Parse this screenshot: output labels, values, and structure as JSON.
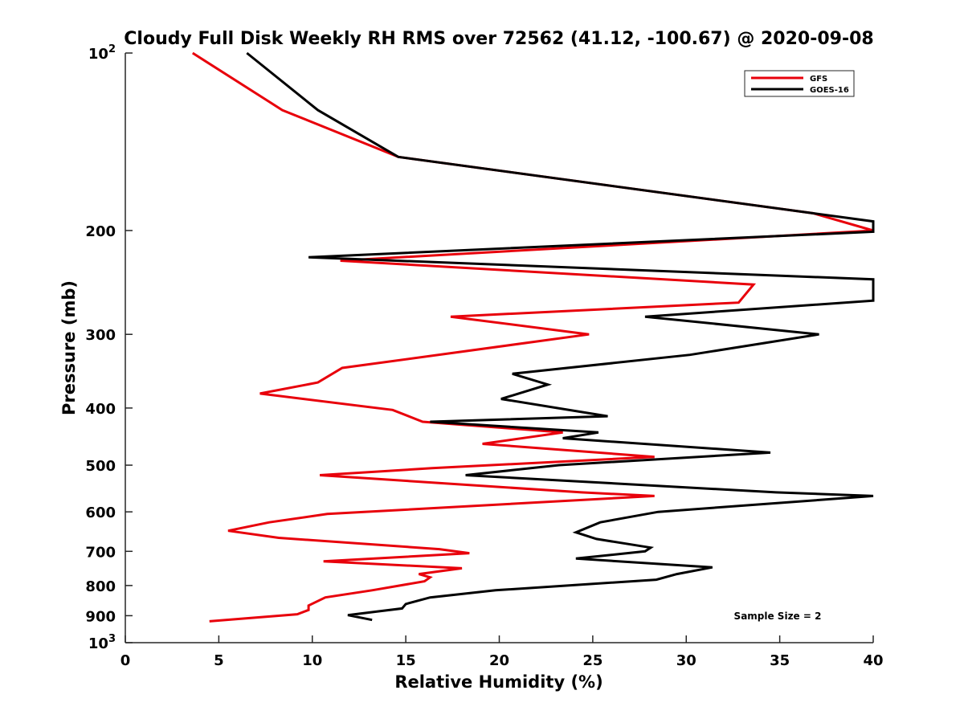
{
  "chart_data": {
    "type": "line",
    "title": "Cloudy Full Disk Weekly RH RMS over 72562 (41.12, -100.67) @ 2020-09-08",
    "xlabel": "Relative Humidity (%)",
    "ylabel": "Pressure (mb)",
    "xlim": [
      0,
      40
    ],
    "ylim": [
      100,
      1000
    ],
    "y_scale": "log",
    "y_reversed": true,
    "x_ticks": [
      "0",
      "5",
      "10",
      "15",
      "20",
      "25",
      "30",
      "35",
      "40"
    ],
    "y_ticks": [
      {
        "value": 100,
        "label": "10",
        "sup": "2"
      },
      {
        "value": 200,
        "label": "200",
        "sup": ""
      },
      {
        "value": 300,
        "label": "300",
        "sup": ""
      },
      {
        "value": 400,
        "label": "400",
        "sup": ""
      },
      {
        "value": 500,
        "label": "500",
        "sup": ""
      },
      {
        "value": 600,
        "label": "600",
        "sup": ""
      },
      {
        "value": 700,
        "label": "700",
        "sup": ""
      },
      {
        "value": 800,
        "label": "800",
        "sup": ""
      },
      {
        "value": 900,
        "label": "900",
        "sup": ""
      },
      {
        "value": 1000,
        "label": "10",
        "sup": "3"
      }
    ],
    "grid": false,
    "legend_position": "top-right",
    "annotation": "Sample Size = 2",
    "series": [
      {
        "name": "GFS",
        "color": "#e8000b",
        "points": [
          [
            3.6,
            100
          ],
          [
            8.4,
            125
          ],
          [
            14.6,
            150
          ],
          [
            36.8,
            187
          ],
          [
            40,
            200
          ],
          [
            11.5,
            225
          ],
          [
            33.6,
            247
          ],
          [
            32.8,
            265
          ],
          [
            17.4,
            280
          ],
          [
            24.8,
            300
          ],
          [
            11.6,
            342
          ],
          [
            10.3,
            362
          ],
          [
            7.2,
            378
          ],
          [
            14.3,
            403
          ],
          [
            15.9,
            422
          ],
          [
            23.4,
            440
          ],
          [
            19.1,
            460
          ],
          [
            28.3,
            484
          ],
          [
            16.4,
            506
          ],
          [
            10.4,
            520
          ],
          [
            24.4,
            556
          ],
          [
            28.3,
            564
          ],
          [
            10.8,
            605
          ],
          [
            7.7,
            625
          ],
          [
            5.5,
            646
          ],
          [
            8.2,
            664
          ],
          [
            16.8,
            694
          ],
          [
            18.4,
            705
          ],
          [
            10.6,
            728
          ],
          [
            18.0,
            748
          ],
          [
            15.7,
            765
          ],
          [
            16.3,
            775
          ],
          [
            16.0,
            787
          ],
          [
            13.2,
            815
          ],
          [
            10.7,
            838
          ],
          [
            9.8,
            865
          ],
          [
            9.8,
            880
          ],
          [
            9.2,
            895
          ],
          [
            4.5,
            920
          ]
        ]
      },
      {
        "name": "GOES-16",
        "color": "#000000",
        "points": [
          [
            6.5,
            100
          ],
          [
            10.3,
            125
          ],
          [
            14.6,
            150
          ],
          [
            36.8,
            187
          ],
          [
            40,
            193
          ],
          [
            40,
            201
          ],
          [
            9.8,
            222
          ],
          [
            40,
            242
          ],
          [
            40,
            263
          ],
          [
            27.8,
            280
          ],
          [
            37.1,
            300
          ],
          [
            30.2,
            325
          ],
          [
            20.7,
            350
          ],
          [
            22.6,
            365
          ],
          [
            20.1,
            386
          ],
          [
            25.8,
            413
          ],
          [
            16.3,
            422
          ],
          [
            25.3,
            440
          ],
          [
            23.4,
            450
          ],
          [
            34.5,
            476
          ],
          [
            23.2,
            500
          ],
          [
            18.2,
            520
          ],
          [
            34.8,
            556
          ],
          [
            40,
            564
          ],
          [
            28.5,
            600
          ],
          [
            25.4,
            625
          ],
          [
            24.1,
            650
          ],
          [
            25.2,
            667
          ],
          [
            28.1,
            690
          ],
          [
            27.8,
            700
          ],
          [
            24.1,
            720
          ],
          [
            31.4,
            745
          ],
          [
            29.5,
            765
          ],
          [
            28.4,
            782
          ],
          [
            19.8,
            815
          ],
          [
            16.3,
            838
          ],
          [
            15.0,
            860
          ],
          [
            14.8,
            875
          ],
          [
            11.9,
            898
          ],
          [
            13.2,
            915
          ]
        ]
      }
    ]
  }
}
